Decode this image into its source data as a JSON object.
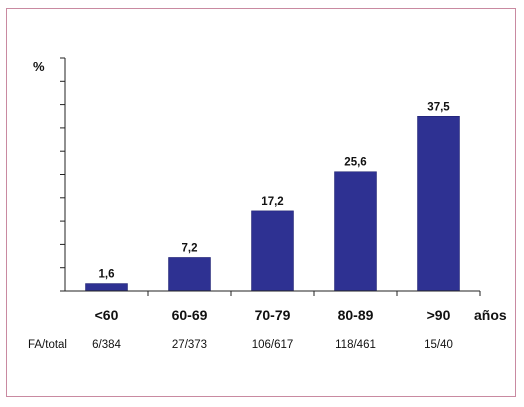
{
  "chart_data": {
    "type": "bar",
    "title": "",
    "ylabel": "%",
    "xlabel": "años",
    "categories": [
      "<60",
      "60-69",
      "70-79",
      "80-89",
      ">90"
    ],
    "values": [
      1.6,
      7.2,
      17.2,
      25.6,
      37.5
    ],
    "value_labels": [
      "1,6",
      "7,2",
      "17,2",
      "25,6",
      "37,5"
    ],
    "ylim": [
      0,
      50
    ],
    "ytick_step": 5,
    "grid": false,
    "bar_color": "#2e3192",
    "footer": {
      "label": "FA/total",
      "values": [
        "6/384",
        "27/373",
        "106/617",
        "118/461",
        "15/40"
      ]
    }
  }
}
